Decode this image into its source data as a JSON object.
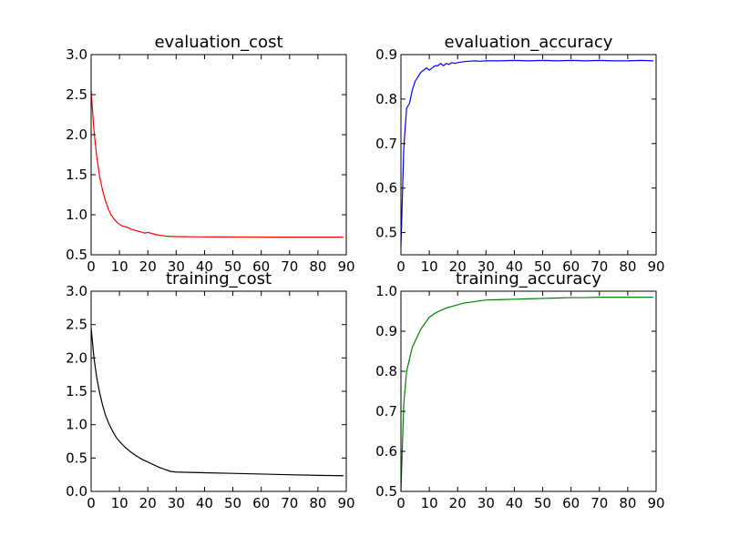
{
  "chart_data": [
    {
      "type": "line",
      "title": "evaluation_cost",
      "xlim": [
        0,
        90
      ],
      "ylim": [
        0.5,
        3.0
      ],
      "xticks": [
        "0",
        "10",
        "20",
        "30",
        "40",
        "50",
        "60",
        "70",
        "80",
        "90"
      ],
      "yticks": [
        "3.0",
        "2.5",
        "2.0",
        "1.5",
        "1.0",
        "0.5"
      ],
      "series": [
        {
          "color": "#ff0000",
          "x": [
            0,
            1,
            2,
            3,
            4,
            5,
            6,
            7,
            8,
            9,
            10,
            11,
            12,
            13,
            14,
            15,
            16,
            17,
            18,
            19,
            20,
            21,
            22,
            23,
            24,
            25,
            26,
            27,
            28,
            29,
            30,
            32,
            35,
            40,
            45,
            50,
            55,
            60,
            65,
            70,
            75,
            80,
            85,
            89
          ],
          "y": [
            2.55,
            2.05,
            1.72,
            1.48,
            1.31,
            1.18,
            1.08,
            1.0,
            0.95,
            0.91,
            0.88,
            0.86,
            0.85,
            0.84,
            0.82,
            0.81,
            0.8,
            0.79,
            0.78,
            0.77,
            0.78,
            0.77,
            0.76,
            0.75,
            0.745,
            0.74,
            0.735,
            0.73,
            0.73,
            0.728,
            0.727,
            0.726,
            0.725,
            0.724,
            0.723,
            0.722,
            0.722,
            0.721,
            0.72,
            0.72,
            0.72,
            0.72,
            0.72,
            0.72
          ]
        }
      ]
    },
    {
      "type": "line",
      "title": "evaluation_accuracy",
      "xlim": [
        0,
        90
      ],
      "ylim": [
        0.45,
        0.9
      ],
      "xticks": [
        "0",
        "10",
        "20",
        "30",
        "40",
        "50",
        "60",
        "70",
        "80",
        "90"
      ],
      "yticks": [
        "0.9",
        "0.8",
        "0.7",
        "0.6",
        "0.5"
      ],
      "series": [
        {
          "color": "#0000ff",
          "x": [
            0,
            1,
            2,
            3,
            4,
            5,
            6,
            7,
            8,
            9,
            10,
            11,
            12,
            13,
            14,
            15,
            16,
            17,
            18,
            19,
            20,
            22,
            24,
            26,
            28,
            30,
            35,
            40,
            45,
            50,
            55,
            60,
            65,
            70,
            75,
            80,
            85,
            89
          ],
          "y": [
            0.47,
            0.69,
            0.78,
            0.79,
            0.82,
            0.84,
            0.85,
            0.86,
            0.865,
            0.87,
            0.865,
            0.87,
            0.875,
            0.875,
            0.88,
            0.875,
            0.88,
            0.878,
            0.882,
            0.88,
            0.882,
            0.884,
            0.885,
            0.886,
            0.885,
            0.886,
            0.886,
            0.887,
            0.886,
            0.887,
            0.886,
            0.887,
            0.886,
            0.887,
            0.886,
            0.886,
            0.887,
            0.886
          ]
        }
      ]
    },
    {
      "type": "line",
      "title": "training_cost",
      "xlim": [
        0,
        90
      ],
      "ylim": [
        0.0,
        3.0
      ],
      "xticks": [
        "0",
        "10",
        "20",
        "30",
        "40",
        "50",
        "60",
        "70",
        "80",
        "90"
      ],
      "yticks": [
        "3.0",
        "2.5",
        "2.0",
        "1.5",
        "1.0",
        "0.5",
        "0.0"
      ],
      "series": [
        {
          "color": "#000000",
          "x": [
            0,
            1,
            2,
            3,
            4,
            5,
            6,
            7,
            8,
            9,
            10,
            12,
            14,
            16,
            18,
            20,
            22,
            24,
            26,
            28,
            30,
            35,
            40,
            50,
            60,
            70,
            80,
            89
          ],
          "y": [
            2.45,
            2.0,
            1.7,
            1.48,
            1.3,
            1.15,
            1.04,
            0.95,
            0.87,
            0.8,
            0.75,
            0.66,
            0.59,
            0.53,
            0.48,
            0.44,
            0.4,
            0.36,
            0.33,
            0.3,
            0.29,
            0.285,
            0.28,
            0.27,
            0.26,
            0.25,
            0.24,
            0.235
          ]
        }
      ]
    },
    {
      "type": "line",
      "title": "training_accuracy",
      "xlim": [
        0,
        90
      ],
      "ylim": [
        0.5,
        1.0
      ],
      "xticks": [
        "0",
        "10",
        "20",
        "30",
        "40",
        "50",
        "60",
        "70",
        "80",
        "90"
      ],
      "yticks": [
        "1.0",
        "0.9",
        "0.8",
        "0.7",
        "0.6",
        "0.5"
      ],
      "series": [
        {
          "color": "#008000",
          "x": [
            0,
            1,
            2,
            3,
            4,
            5,
            6,
            7,
            8,
            9,
            10,
            12,
            14,
            16,
            18,
            20,
            22,
            24,
            26,
            28,
            30,
            35,
            40,
            45,
            50,
            55,
            60,
            65,
            70,
            75,
            80,
            85,
            89
          ],
          "y": [
            0.5,
            0.72,
            0.8,
            0.83,
            0.86,
            0.875,
            0.89,
            0.905,
            0.915,
            0.925,
            0.935,
            0.945,
            0.952,
            0.958,
            0.962,
            0.966,
            0.97,
            0.972,
            0.974,
            0.976,
            0.978,
            0.979,
            0.98,
            0.981,
            0.982,
            0.983,
            0.984,
            0.984,
            0.985,
            0.985,
            0.985,
            0.985,
            0.985
          ]
        }
      ]
    }
  ]
}
